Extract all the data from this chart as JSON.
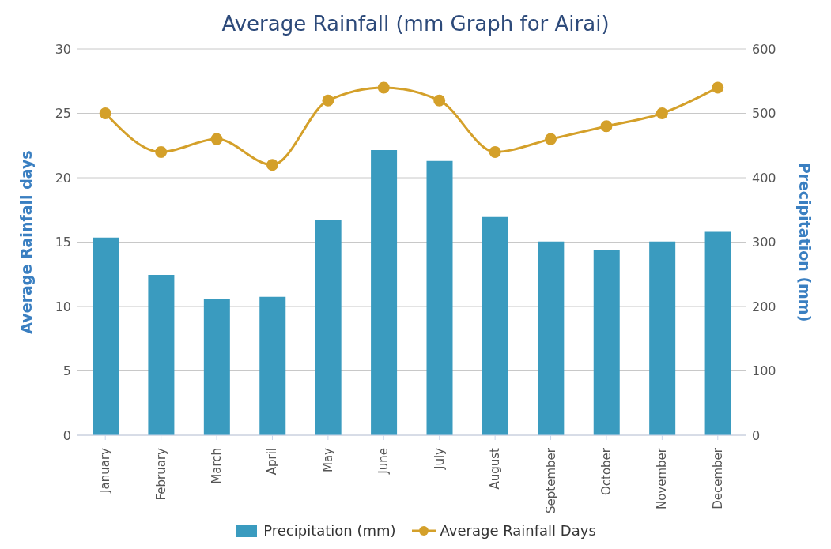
{
  "chart_data": {
    "type": "bar",
    "title": "Average Rainfall (mm Graph for Airai)",
    "ylabel": "Average Rainfall days",
    "y2label": "Precipitation (mm)",
    "categories": [
      "January",
      "February",
      "March",
      "April",
      "May",
      "June",
      "July",
      "August",
      "September",
      "October",
      "November",
      "December"
    ],
    "series": [
      {
        "name": "Precipitation (mm)",
        "axis": "y2",
        "color": "#3a9bbf",
        "values": [
          307,
          249,
          212,
          215,
          335,
          443,
          426,
          339,
          301,
          287,
          301,
          316
        ]
      },
      {
        "name": "Average Rainfall Days",
        "type": "line",
        "color": "#d4a02a",
        "marker": "circle",
        "values": [
          25,
          22,
          23,
          21,
          26,
          27,
          26,
          22,
          23,
          24,
          25,
          27
        ]
      }
    ],
    "ylim": [
      0,
      30
    ],
    "yticks": [
      0,
      5,
      10,
      15,
      20,
      25,
      30
    ],
    "y2lim": [
      0,
      600
    ],
    "y2ticks": [
      0,
      100,
      200,
      300,
      400,
      500,
      600
    ],
    "grid": "y",
    "legend": "bottom"
  }
}
